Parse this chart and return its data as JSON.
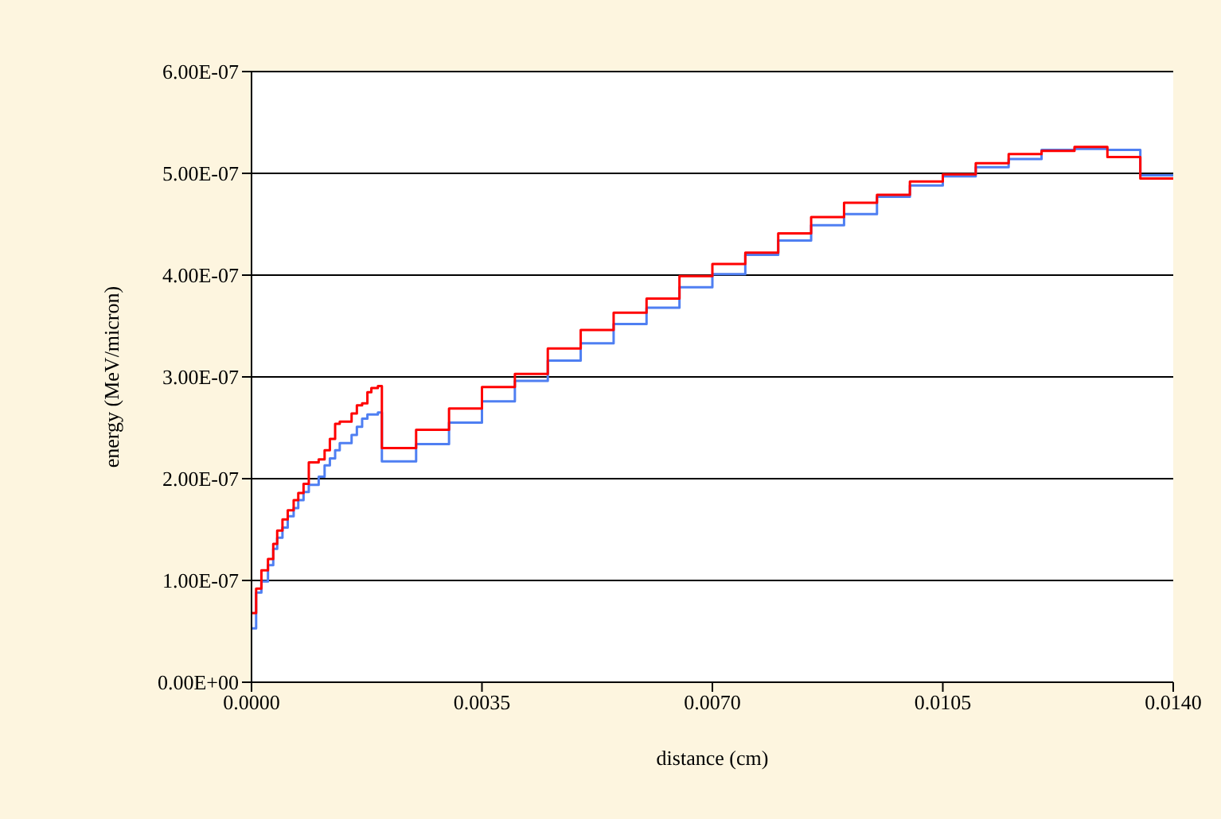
{
  "chart_data": {
    "type": "step",
    "xlabel": "distance (cm)",
    "ylabel": "energy (MeV/micron)",
    "x": [
      0,
      7e-05,
      0.00015,
      0.00025,
      0.00033,
      0.00039,
      0.00047,
      0.00055,
      0.00064,
      0.00071,
      0.00079,
      0.00087,
      0.00102,
      0.00111,
      0.00119,
      0.00127,
      0.00134,
      0.00152,
      0.0016,
      0.00168,
      0.00176,
      0.00182,
      0.00192,
      0.00198,
      0.0025,
      0.003,
      0.0035,
      0.004,
      0.0045,
      0.005,
      0.0055,
      0.006,
      0.0065,
      0.007,
      0.0075,
      0.008,
      0.0085,
      0.009,
      0.0095,
      0.01,
      0.0105,
      0.011,
      0.0115,
      0.012,
      0.0125,
      0.013,
      0.0135,
      0.014
    ],
    "series": [
      {
        "color": "#4f7ff2",
        "values": [
          5.3e-08,
          8.8e-08,
          9.9e-08,
          1.15e-07,
          1.31e-07,
          1.42e-07,
          1.52e-07,
          1.63e-07,
          1.71e-07,
          1.79e-07,
          1.87e-07,
          1.94e-07,
          2.02e-07,
          2.13e-07,
          2.2e-07,
          2.28e-07,
          2.35e-07,
          2.43e-07,
          2.51e-07,
          2.59e-07,
          2.63e-07,
          2.63e-07,
          2.65e-07,
          2.17e-07,
          2.34e-07,
          2.55e-07,
          2.76e-07,
          2.96e-07,
          3.16e-07,
          3.33e-07,
          3.52e-07,
          3.68e-07,
          3.88e-07,
          4.01e-07,
          4.2e-07,
          4.34e-07,
          4.49e-07,
          4.6e-07,
          4.77e-07,
          4.88e-07,
          4.97e-07,
          5.06e-07,
          5.14e-07,
          5.23e-07,
          5.24e-07,
          5.23e-07,
          4.98e-07,
          4.98e-07
        ]
      },
      {
        "color": "#ff0000",
        "values": [
          6.8e-08,
          9.2e-08,
          1.1e-07,
          1.21e-07,
          1.36e-07,
          1.49e-07,
          1.6e-07,
          1.69e-07,
          1.79e-07,
          1.86e-07,
          1.95e-07,
          2.16e-07,
          2.19e-07,
          2.28e-07,
          2.39e-07,
          2.54e-07,
          2.56e-07,
          2.64e-07,
          2.72e-07,
          2.74e-07,
          2.85e-07,
          2.89e-07,
          2.91e-07,
          2.3e-07,
          2.48e-07,
          2.69e-07,
          2.9e-07,
          3.03e-07,
          3.28e-07,
          3.46e-07,
          3.63e-07,
          3.77e-07,
          3.99e-07,
          4.11e-07,
          4.22e-07,
          4.41e-07,
          4.57e-07,
          4.71e-07,
          4.79e-07,
          4.92e-07,
          4.99e-07,
          5.1e-07,
          5.19e-07,
          5.22e-07,
          5.26e-07,
          5.16e-07,
          4.95e-07,
          4.95e-07
        ]
      }
    ],
    "xlim": [
      0,
      0.014
    ],
    "xticks": [
      {
        "value": 0,
        "label": "0.0000"
      },
      {
        "value": 0.0035,
        "label": "0.0035"
      },
      {
        "value": 0.007,
        "label": "0.0070"
      },
      {
        "value": 0.0105,
        "label": "0.0105"
      },
      {
        "value": 0.014,
        "label": "0.0140"
      }
    ],
    "ylim": [
      0,
      6e-07
    ],
    "yticks": [
      {
        "value": 0,
        "label": "0.00E+00"
      },
      {
        "value": 1e-07,
        "label": "1.00E-07"
      },
      {
        "value": 2e-07,
        "label": "2.00E-07"
      },
      {
        "value": 3e-07,
        "label": "3.00E-07"
      },
      {
        "value": 4e-07,
        "label": "4.00E-07"
      },
      {
        "value": 5e-07,
        "label": "5.00E-07"
      },
      {
        "value": 6e-07,
        "label": "6.00E-07"
      }
    ],
    "grid": "y"
  }
}
